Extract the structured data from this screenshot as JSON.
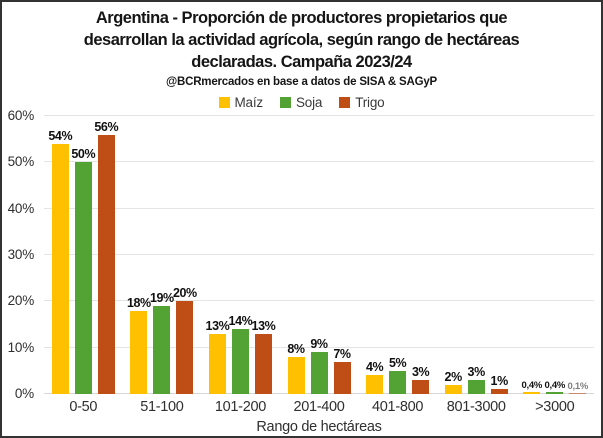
{
  "title_lines": [
    "Argentina - Proporción de productores propietarios que",
    "desarrollan la actividad agrícola, según rango de hectáreas",
    "declaradas. Campaña 2023/24"
  ],
  "subtitle": "@BCRmercados en base a datos de SISA & SAGyP",
  "colors": {
    "maiz": "#FFC000",
    "soja": "#53A334",
    "trigo": "#BE4D16",
    "gridline": "#E4E4E4",
    "text": "#151515"
  },
  "chart_data": {
    "type": "bar",
    "title": "Argentina - Proporción de productores propietarios que desarrollan la actividad agrícola, según rango de hectáreas declaradas. Campaña 2023/24",
    "subtitle": "@BCRmercados en base a datos de SISA & SAGyP",
    "categories": [
      "0-50",
      "51-100",
      "101-200",
      "201-400",
      "401-800",
      "801-3000",
      ">3000"
    ],
    "series": [
      {
        "name": "Maíz",
        "color": "#FFC000",
        "values": [
          54,
          18,
          13,
          8,
          4,
          2,
          0.4
        ],
        "labels": [
          "54%",
          "18%",
          "13%",
          "8%",
          "4%",
          "2%",
          "0,4%"
        ]
      },
      {
        "name": "Soja",
        "color": "#53A334",
        "values": [
          50,
          19,
          14,
          9,
          5,
          3,
          0.4
        ],
        "labels": [
          "50%",
          "19%",
          "14%",
          "9%",
          "5%",
          "3%",
          "0,4%"
        ]
      },
      {
        "name": "Trigo",
        "color": "#BE4D16",
        "values": [
          56,
          20,
          13,
          7,
          3,
          1,
          0.1
        ],
        "labels": [
          "56%",
          "20%",
          "13%",
          "7%",
          "3%",
          "1%",
          "0,1%"
        ]
      }
    ],
    "xlabel": "Rango de hectáreas",
    "ylabel": "",
    "ylim": [
      0,
      60
    ],
    "yticks": [
      "0%",
      "10%",
      "20%",
      "30%",
      "40%",
      "50%",
      "60%"
    ],
    "grid": true,
    "legend_position": "top"
  }
}
